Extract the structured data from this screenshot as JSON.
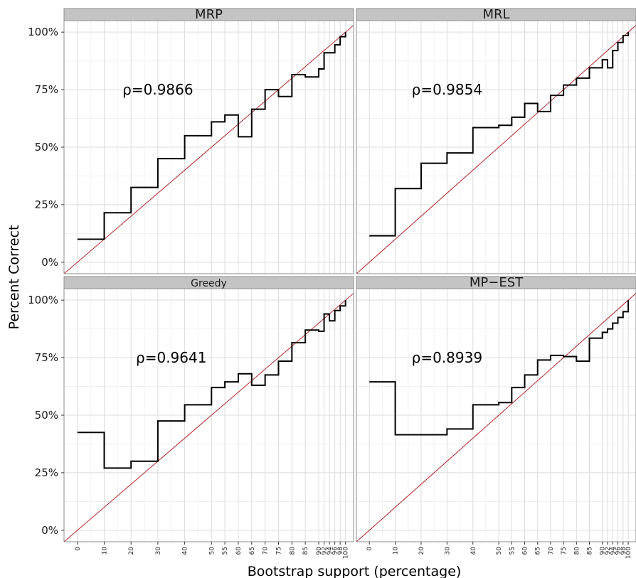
{
  "chart_data": {
    "type": "line",
    "layout": "facet-grid-2x2",
    "xlabel": "Bootstrap support (percentage)",
    "ylabel": "Percent Correct",
    "xlim": [
      -5,
      103
    ],
    "ylim": [
      -5,
      105
    ],
    "x_ticks": [
      0,
      10,
      20,
      30,
      40,
      50,
      55,
      60,
      65,
      70,
      75,
      80,
      85,
      90,
      92,
      94,
      96,
      98,
      100
    ],
    "x_tick_labels": [
      "0",
      "10",
      "20",
      "30",
      "40",
      "50",
      "55",
      "60",
      "65",
      "70",
      "75",
      "80",
      "85",
      "90",
      "92",
      "94",
      "96",
      "98",
      "100"
    ],
    "y_ticks": [
      0,
      25,
      50,
      75,
      100
    ],
    "y_tick_labels": [
      "0%",
      "25%",
      "50%",
      "75%",
      "100%"
    ],
    "grid": true,
    "reference_line": {
      "x": [
        -5,
        105
      ],
      "y": [
        -5,
        105
      ],
      "color": "#b22222"
    },
    "step_color": "#000000",
    "strip_fill": "#c4c4c4",
    "facets": [
      {
        "name": "MRP",
        "annotation": "ρ=0.9866",
        "annotation_x": 30,
        "annotation_y": 75,
        "x": [
          0,
          10,
          20,
          30,
          40,
          50,
          55,
          60,
          65,
          70,
          75,
          80,
          85,
          90,
          92,
          94,
          96,
          98,
          100
        ],
        "y": [
          10,
          21.5,
          32.5,
          45,
          55,
          61,
          64,
          54.5,
          66.5,
          75,
          72,
          81.5,
          80.5,
          84,
          91,
          91,
          94.5,
          98,
          100
        ]
      },
      {
        "name": "MRL",
        "annotation": "ρ=0.9854",
        "annotation_x": 30,
        "annotation_y": 75,
        "x": [
          0,
          10,
          20,
          30,
          40,
          50,
          55,
          60,
          65,
          70,
          75,
          80,
          85,
          90,
          92,
          94,
          96,
          98,
          100
        ],
        "y": [
          11.5,
          32,
          43,
          47.5,
          58.5,
          59.5,
          63,
          69,
          65.5,
          72.5,
          77,
          80,
          84.5,
          88,
          84.5,
          92,
          95.5,
          98.5,
          100
        ]
      },
      {
        "name": "Greedy",
        "annotation": "ρ=0.9641",
        "annotation_x": 35,
        "annotation_y": 75,
        "x": [
          0,
          10,
          20,
          30,
          40,
          50,
          55,
          60,
          65,
          70,
          75,
          80,
          85,
          90,
          92,
          94,
          96,
          98,
          100
        ],
        "y": [
          42.5,
          27,
          30,
          47.5,
          54.5,
          62,
          64.5,
          68,
          63,
          67.5,
          73.5,
          81.5,
          87,
          86.5,
          94,
          91,
          95.5,
          97.5,
          100
        ]
      },
      {
        "name": "MP−EST",
        "annotation": "ρ=0.8939",
        "annotation_x": 30,
        "annotation_y": 75,
        "x": [
          0,
          10,
          20,
          30,
          40,
          50,
          55,
          60,
          65,
          70,
          75,
          80,
          85,
          90,
          92,
          94,
          96,
          98,
          100
        ],
        "y": [
          64.5,
          41.5,
          41.5,
          44,
          54.5,
          55.5,
          62,
          67.5,
          74,
          76,
          75.5,
          73.5,
          83.5,
          86,
          87.5,
          90,
          92.5,
          95,
          100
        ]
      }
    ]
  }
}
